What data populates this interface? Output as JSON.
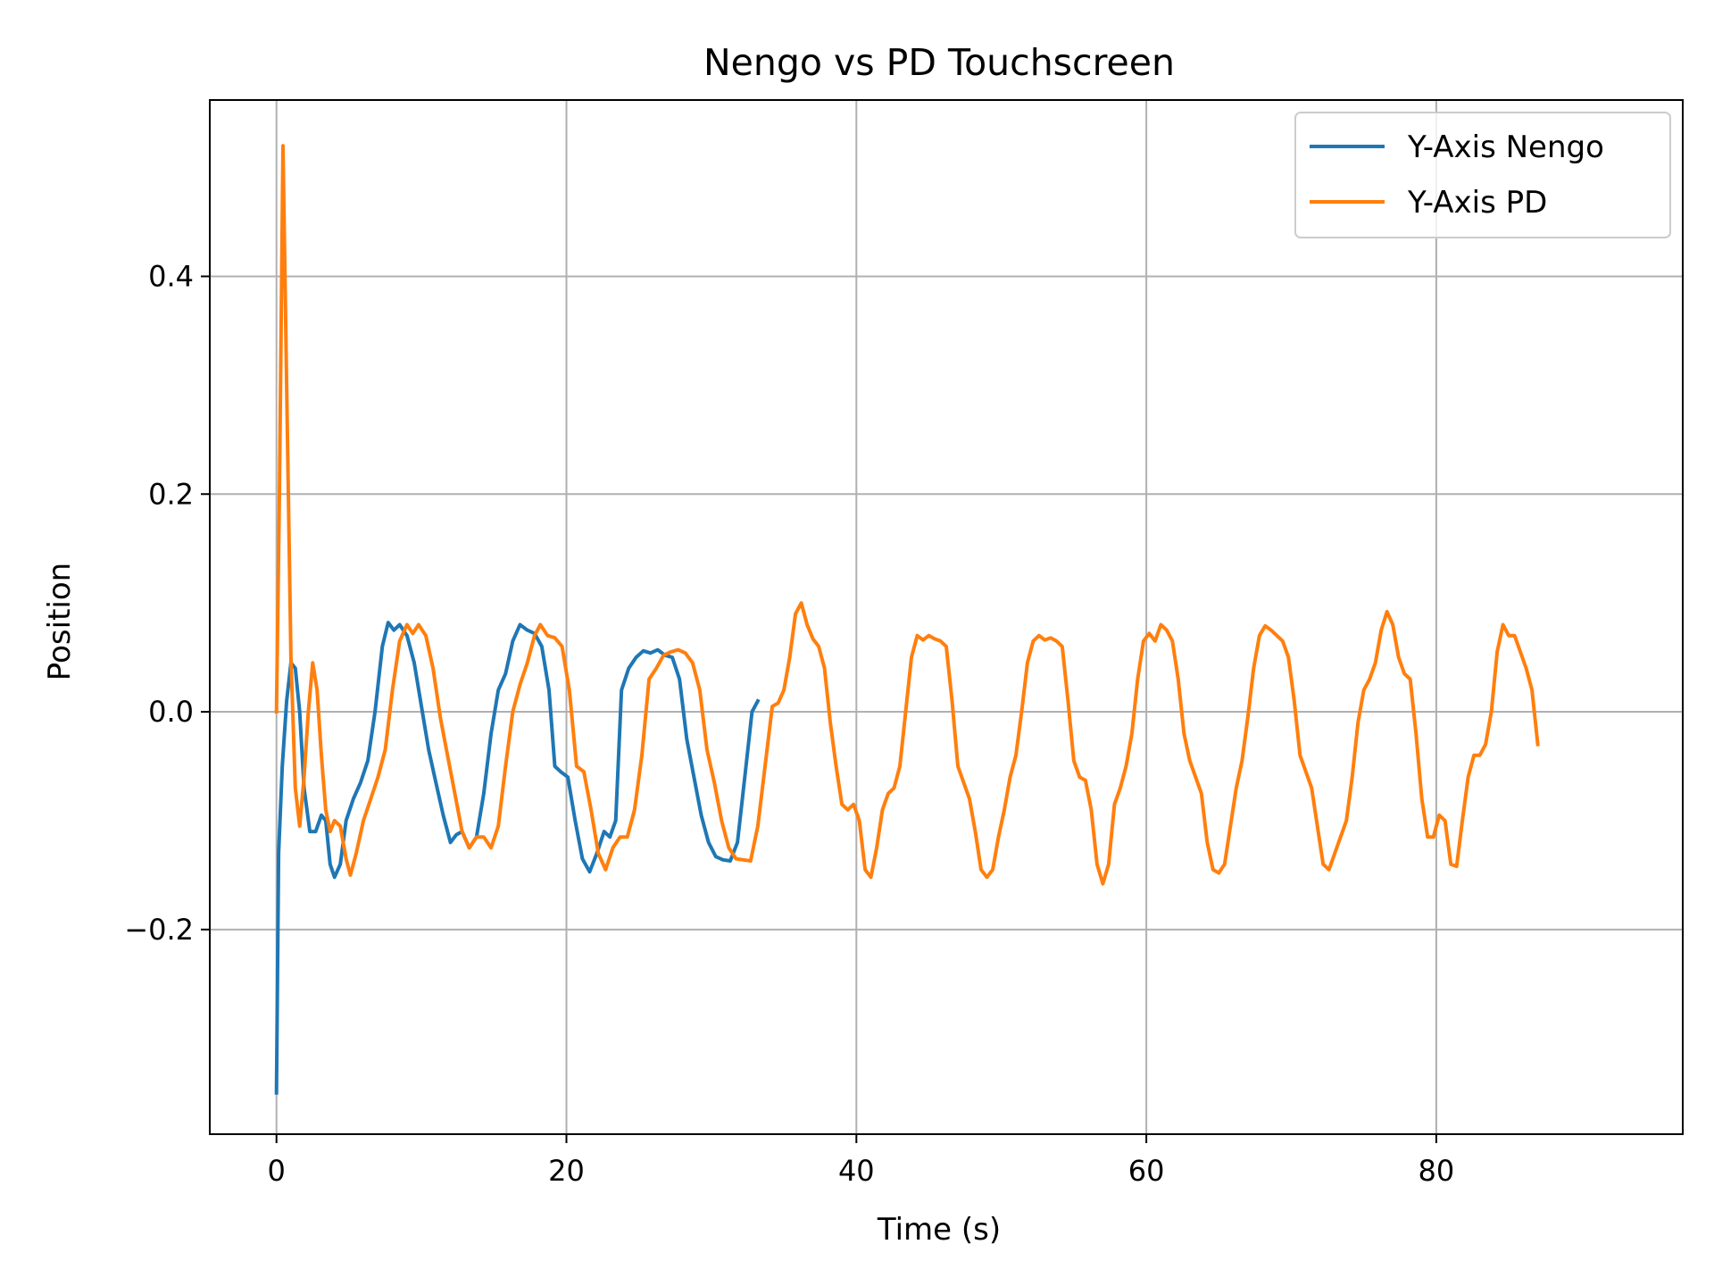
{
  "chart_data": {
    "type": "line",
    "title": "Nengo vs PD Touchscreen",
    "xlabel": "Time (s)",
    "ylabel": "Position",
    "xlim": [
      -4.6,
      97.0
    ],
    "ylim": [
      -0.388,
      0.562
    ],
    "xticks": [
      0,
      20,
      40,
      60,
      80
    ],
    "xtick_labels": [
      "0",
      "20",
      "40",
      "60",
      "80"
    ],
    "yticks": [
      -0.2,
      0.0,
      0.2,
      0.4
    ],
    "ytick_labels": [
      "−0.2",
      "0.0",
      "0.2",
      "0.4"
    ],
    "grid": true,
    "legend_position": "top-right",
    "series": [
      {
        "name": "Y-Axis Nengo",
        "color": "#1f77b4",
        "points": [
          [
            0.0,
            -0.35
          ],
          [
            0.15,
            -0.13
          ],
          [
            0.4,
            -0.05
          ],
          [
            0.7,
            0.01
          ],
          [
            1.0,
            0.045
          ],
          [
            1.3,
            0.04
          ],
          [
            1.6,
            0.0
          ],
          [
            1.9,
            -0.07
          ],
          [
            2.3,
            -0.11
          ],
          [
            2.7,
            -0.11
          ],
          [
            3.1,
            -0.095
          ],
          [
            3.4,
            -0.1
          ],
          [
            3.7,
            -0.14
          ],
          [
            4.0,
            -0.152
          ],
          [
            4.4,
            -0.14
          ],
          [
            4.8,
            -0.1
          ],
          [
            5.3,
            -0.08
          ],
          [
            5.8,
            -0.065
          ],
          [
            6.3,
            -0.045
          ],
          [
            6.8,
            0.0
          ],
          [
            7.3,
            0.06
          ],
          [
            7.7,
            0.082
          ],
          [
            8.1,
            0.075
          ],
          [
            8.5,
            0.08
          ],
          [
            9.0,
            0.07
          ],
          [
            9.5,
            0.045
          ],
          [
            10.0,
            0.005
          ],
          [
            10.5,
            -0.035
          ],
          [
            11.0,
            -0.065
          ],
          [
            11.5,
            -0.095
          ],
          [
            12.0,
            -0.12
          ],
          [
            12.4,
            -0.113
          ],
          [
            12.8,
            -0.11
          ],
          [
            13.3,
            -0.125
          ],
          [
            13.8,
            -0.115
          ],
          [
            14.3,
            -0.075
          ],
          [
            14.8,
            -0.02
          ],
          [
            15.3,
            0.02
          ],
          [
            15.8,
            0.035
          ],
          [
            16.3,
            0.065
          ],
          [
            16.8,
            0.08
          ],
          [
            17.3,
            0.075
          ],
          [
            17.8,
            0.072
          ],
          [
            18.3,
            0.06
          ],
          [
            18.8,
            0.02
          ],
          [
            19.2,
            -0.05
          ],
          [
            19.6,
            -0.055
          ],
          [
            20.1,
            -0.06
          ],
          [
            20.6,
            -0.1
          ],
          [
            21.1,
            -0.135
          ],
          [
            21.6,
            -0.147
          ],
          [
            22.1,
            -0.13
          ],
          [
            22.6,
            -0.11
          ],
          [
            23.0,
            -0.115
          ],
          [
            23.4,
            -0.1
          ],
          [
            23.8,
            0.02
          ],
          [
            24.3,
            0.04
          ],
          [
            24.8,
            0.05
          ],
          [
            25.3,
            0.056
          ],
          [
            25.8,
            0.054
          ],
          [
            26.3,
            0.057
          ],
          [
            26.8,
            0.052
          ],
          [
            27.3,
            0.05
          ],
          [
            27.8,
            0.03
          ],
          [
            28.3,
            -0.025
          ],
          [
            28.8,
            -0.06
          ],
          [
            29.3,
            -0.095
          ],
          [
            29.8,
            -0.12
          ],
          [
            30.3,
            -0.133
          ],
          [
            30.8,
            -0.136
          ],
          [
            31.3,
            -0.137
          ],
          [
            31.8,
            -0.12
          ],
          [
            32.3,
            -0.06
          ],
          [
            32.8,
            0.0
          ],
          [
            33.2,
            0.01
          ]
        ]
      },
      {
        "name": "Y-Axis PD",
        "color": "#ff7f0e",
        "points": [
          [
            0.0,
            0.0
          ],
          [
            0.2,
            0.2
          ],
          [
            0.45,
            0.52
          ],
          [
            0.7,
            0.3
          ],
          [
            1.0,
            0.05
          ],
          [
            1.3,
            -0.07
          ],
          [
            1.6,
            -0.105
          ],
          [
            1.9,
            -0.06
          ],
          [
            2.2,
            0.0
          ],
          [
            2.5,
            0.045
          ],
          [
            2.8,
            0.02
          ],
          [
            3.1,
            -0.04
          ],
          [
            3.4,
            -0.09
          ],
          [
            3.7,
            -0.11
          ],
          [
            4.0,
            -0.1
          ],
          [
            4.4,
            -0.105
          ],
          [
            4.8,
            -0.135
          ],
          [
            5.1,
            -0.15
          ],
          [
            5.5,
            -0.13
          ],
          [
            6.0,
            -0.1
          ],
          [
            6.5,
            -0.08
          ],
          [
            7.0,
            -0.06
          ],
          [
            7.5,
            -0.035
          ],
          [
            8.0,
            0.02
          ],
          [
            8.5,
            0.065
          ],
          [
            9.0,
            0.08
          ],
          [
            9.4,
            0.072
          ],
          [
            9.8,
            0.08
          ],
          [
            10.3,
            0.07
          ],
          [
            10.8,
            0.04
          ],
          [
            11.3,
            -0.005
          ],
          [
            11.8,
            -0.04
          ],
          [
            12.3,
            -0.075
          ],
          [
            12.8,
            -0.11
          ],
          [
            13.3,
            -0.125
          ],
          [
            13.8,
            -0.115
          ],
          [
            14.3,
            -0.115
          ],
          [
            14.8,
            -0.125
          ],
          [
            15.3,
            -0.105
          ],
          [
            15.8,
            -0.05
          ],
          [
            16.3,
            0.0
          ],
          [
            16.8,
            0.025
          ],
          [
            17.3,
            0.045
          ],
          [
            17.8,
            0.07
          ],
          [
            18.2,
            0.08
          ],
          [
            18.7,
            0.07
          ],
          [
            19.2,
            0.068
          ],
          [
            19.7,
            0.06
          ],
          [
            20.2,
            0.02
          ],
          [
            20.7,
            -0.05
          ],
          [
            21.2,
            -0.055
          ],
          [
            21.7,
            -0.09
          ],
          [
            22.2,
            -0.13
          ],
          [
            22.7,
            -0.145
          ],
          [
            23.2,
            -0.125
          ],
          [
            23.7,
            -0.115
          ],
          [
            24.2,
            -0.115
          ],
          [
            24.7,
            -0.09
          ],
          [
            25.2,
            -0.04
          ],
          [
            25.7,
            0.03
          ],
          [
            26.2,
            0.04
          ],
          [
            26.7,
            0.052
          ],
          [
            27.2,
            0.055
          ],
          [
            27.7,
            0.057
          ],
          [
            28.2,
            0.054
          ],
          [
            28.7,
            0.045
          ],
          [
            29.2,
            0.02
          ],
          [
            29.7,
            -0.035
          ],
          [
            30.2,
            -0.065
          ],
          [
            30.7,
            -0.1
          ],
          [
            31.2,
            -0.125
          ],
          [
            31.7,
            -0.135
          ],
          [
            32.2,
            -0.136
          ],
          [
            32.7,
            -0.137
          ],
          [
            33.2,
            -0.105
          ],
          [
            33.7,
            -0.05
          ],
          [
            34.2,
            0.005
          ],
          [
            34.6,
            0.008
          ],
          [
            35.0,
            0.02
          ],
          [
            35.4,
            0.05
          ],
          [
            35.8,
            0.09
          ],
          [
            36.2,
            0.1
          ],
          [
            36.6,
            0.08
          ],
          [
            37.0,
            0.067
          ],
          [
            37.4,
            0.06
          ],
          [
            37.8,
            0.04
          ],
          [
            38.2,
            -0.01
          ],
          [
            38.6,
            -0.05
          ],
          [
            39.0,
            -0.085
          ],
          [
            39.4,
            -0.09
          ],
          [
            39.8,
            -0.085
          ],
          [
            40.2,
            -0.1
          ],
          [
            40.6,
            -0.145
          ],
          [
            41.0,
            -0.152
          ],
          [
            41.4,
            -0.125
          ],
          [
            41.8,
            -0.09
          ],
          [
            42.2,
            -0.075
          ],
          [
            42.6,
            -0.07
          ],
          [
            43.0,
            -0.05
          ],
          [
            43.4,
            0.0
          ],
          [
            43.8,
            0.05
          ],
          [
            44.2,
            0.07
          ],
          [
            44.6,
            0.066
          ],
          [
            45.0,
            0.07
          ],
          [
            45.4,
            0.067
          ],
          [
            45.8,
            0.065
          ],
          [
            46.2,
            0.06
          ],
          [
            46.6,
            0.01
          ],
          [
            47.0,
            -0.05
          ],
          [
            47.4,
            -0.065
          ],
          [
            47.8,
            -0.08
          ],
          [
            48.2,
            -0.11
          ],
          [
            48.6,
            -0.145
          ],
          [
            49.0,
            -0.152
          ],
          [
            49.4,
            -0.145
          ],
          [
            49.8,
            -0.115
          ],
          [
            50.2,
            -0.09
          ],
          [
            50.6,
            -0.06
          ],
          [
            51.0,
            -0.04
          ],
          [
            51.4,
            0.0
          ],
          [
            51.8,
            0.045
          ],
          [
            52.2,
            0.065
          ],
          [
            52.6,
            0.07
          ],
          [
            53.0,
            0.066
          ],
          [
            53.4,
            0.068
          ],
          [
            53.8,
            0.065
          ],
          [
            54.2,
            0.06
          ],
          [
            54.6,
            0.01
          ],
          [
            55.0,
            -0.045
          ],
          [
            55.4,
            -0.06
          ],
          [
            55.8,
            -0.063
          ],
          [
            56.2,
            -0.09
          ],
          [
            56.6,
            -0.14
          ],
          [
            57.0,
            -0.158
          ],
          [
            57.4,
            -0.14
          ],
          [
            57.8,
            -0.085
          ],
          [
            58.2,
            -0.07
          ],
          [
            58.6,
            -0.05
          ],
          [
            59.0,
            -0.02
          ],
          [
            59.4,
            0.03
          ],
          [
            59.8,
            0.065
          ],
          [
            60.2,
            0.072
          ],
          [
            60.6,
            0.065
          ],
          [
            61.0,
            0.08
          ],
          [
            61.4,
            0.075
          ],
          [
            61.8,
            0.065
          ],
          [
            62.2,
            0.03
          ],
          [
            62.6,
            -0.02
          ],
          [
            63.0,
            -0.045
          ],
          [
            63.4,
            -0.06
          ],
          [
            63.8,
            -0.075
          ],
          [
            64.2,
            -0.12
          ],
          [
            64.6,
            -0.145
          ],
          [
            65.0,
            -0.148
          ],
          [
            65.4,
            -0.14
          ],
          [
            65.8,
            -0.105
          ],
          [
            66.2,
            -0.07
          ],
          [
            66.6,
            -0.045
          ],
          [
            67.0,
            -0.005
          ],
          [
            67.4,
            0.04
          ],
          [
            67.8,
            0.07
          ],
          [
            68.2,
            0.079
          ],
          [
            68.6,
            0.075
          ],
          [
            69.0,
            0.07
          ],
          [
            69.4,
            0.065
          ],
          [
            69.8,
            0.05
          ],
          [
            70.2,
            0.01
          ],
          [
            70.6,
            -0.04
          ],
          [
            71.0,
            -0.055
          ],
          [
            71.4,
            -0.07
          ],
          [
            71.8,
            -0.105
          ],
          [
            72.2,
            -0.14
          ],
          [
            72.6,
            -0.145
          ],
          [
            73.0,
            -0.13
          ],
          [
            73.4,
            -0.115
          ],
          [
            73.8,
            -0.1
          ],
          [
            74.2,
            -0.06
          ],
          [
            74.6,
            -0.01
          ],
          [
            75.0,
            0.02
          ],
          [
            75.4,
            0.03
          ],
          [
            75.8,
            0.045
          ],
          [
            76.2,
            0.075
          ],
          [
            76.6,
            0.092
          ],
          [
            77.0,
            0.08
          ],
          [
            77.4,
            0.05
          ],
          [
            77.8,
            0.035
          ],
          [
            78.2,
            0.03
          ],
          [
            78.6,
            -0.02
          ],
          [
            79.0,
            -0.08
          ],
          [
            79.4,
            -0.115
          ],
          [
            79.8,
            -0.115
          ],
          [
            80.2,
            -0.095
          ],
          [
            80.6,
            -0.1
          ],
          [
            81.0,
            -0.14
          ],
          [
            81.4,
            -0.142
          ],
          [
            81.8,
            -0.1
          ],
          [
            82.2,
            -0.06
          ],
          [
            82.6,
            -0.04
          ],
          [
            83.0,
            -0.04
          ],
          [
            83.4,
            -0.03
          ],
          [
            83.8,
            0.0
          ],
          [
            84.2,
            0.055
          ],
          [
            84.6,
            0.08
          ],
          [
            85.0,
            0.07
          ],
          [
            85.4,
            0.07
          ],
          [
            85.8,
            0.055
          ],
          [
            86.2,
            0.04
          ],
          [
            86.6,
            0.02
          ],
          [
            87.0,
            -0.03
          ]
        ]
      }
    ]
  }
}
